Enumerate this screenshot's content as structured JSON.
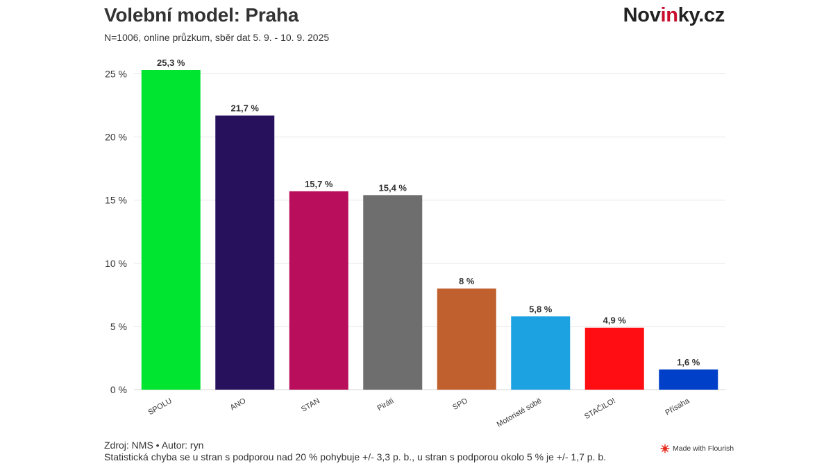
{
  "header": {
    "title": "Volební model: Praha",
    "subtitle": "N=1006, online průzkum, sběr dat 5. 9. - 10. 9. 2025",
    "brand_pre": "Nov",
    "brand_accent": "in",
    "brand_post": "ky.cz"
  },
  "footer": {
    "source": "Zdroj: NMS • Autor: ryn",
    "note": "Statistická chyba se u stran s podporou nad 20 % pohybuje +/- 3,3 p. b., u stran s podporou okolo 5 % je +/- 1,7 p. b.",
    "badge": "Made with Flourish"
  },
  "colors": {
    "brand_accent": "#c8102e",
    "grid": "#e6e6e6",
    "text": "#333333"
  },
  "chart_data": {
    "type": "bar",
    "categories": [
      "SPOLU",
      "ANO",
      "STAN",
      "Piráti",
      "SPD",
      "Motoristé sobě",
      "STAČILO!",
      "Přísaha"
    ],
    "values": [
      25.3,
      21.7,
      15.7,
      15.4,
      8,
      5.8,
      4.9,
      1.6
    ],
    "value_labels": [
      "25,3 %",
      "21,7 %",
      "15,7 %",
      "15,4 %",
      "8 %",
      "5,8 %",
      "4,9 %",
      "1,6 %"
    ],
    "colors": [
      "#00e52f",
      "#28115c",
      "#b80e5b",
      "#6e6e6e",
      "#c0602e",
      "#1ca2e1",
      "#ff0d12",
      "#0040c8"
    ],
    "y_ticks": [
      0,
      5,
      10,
      15,
      20,
      25
    ],
    "y_tick_labels": [
      "0 %",
      "5 %",
      "10 %",
      "15 %",
      "20 %",
      "25 %"
    ],
    "ylim": [
      0,
      25.3
    ],
    "grid": true,
    "legend": "none",
    "title": "Volební model: Praha",
    "xlabel": "",
    "ylabel": ""
  }
}
